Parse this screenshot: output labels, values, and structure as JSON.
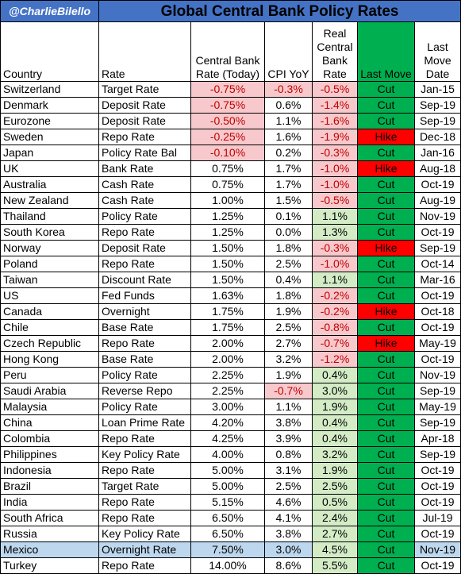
{
  "header": {
    "handle": "@CharlieBilello",
    "title": "Global Central Bank Policy Rates"
  },
  "columns": {
    "country": "Country",
    "rate": "Rate",
    "cb_rate": "Central Bank Rate (Today)",
    "cpi": "CPI YoY",
    "real": "Real Central Bank Rate",
    "last_move": "Last Move",
    "last_move_date": "Last Move Date"
  },
  "colors": {
    "header_blue": "#4472c4",
    "cut_green": "#00b050",
    "hike_red": "#ff0000",
    "negative_pink": "#f8c9cc",
    "positive_green": "#d3ecc6",
    "highlight_blue": "#bdd7ee"
  },
  "rows": [
    {
      "country": "Switzerland",
      "rate": "Target Rate",
      "cb_rate": "-0.75%",
      "cpi": "-0.3%",
      "real": "-0.5%",
      "move": "Cut",
      "date": "Jan-15"
    },
    {
      "country": "Denmark",
      "rate": "Deposit Rate",
      "cb_rate": "-0.75%",
      "cpi": "0.6%",
      "real": "-1.4%",
      "move": "Cut",
      "date": "Sep-19"
    },
    {
      "country": "Eurozone",
      "rate": "Deposit Rate",
      "cb_rate": "-0.50%",
      "cpi": "1.1%",
      "real": "-1.6%",
      "move": "Cut",
      "date": "Sep-19"
    },
    {
      "country": "Sweden",
      "rate": "Repo Rate",
      "cb_rate": "-0.25%",
      "cpi": "1.6%",
      "real": "-1.9%",
      "move": "Hike",
      "date": "Dec-18"
    },
    {
      "country": "Japan",
      "rate": "Policy Rate Bal",
      "cb_rate": "-0.10%",
      "cpi": "0.2%",
      "real": "-0.3%",
      "move": "Cut",
      "date": "Jan-16"
    },
    {
      "country": "UK",
      "rate": "Bank Rate",
      "cb_rate": "0.75%",
      "cpi": "1.7%",
      "real": "-1.0%",
      "move": "Hike",
      "date": "Aug-18"
    },
    {
      "country": "Australia",
      "rate": "Cash Rate",
      "cb_rate": "0.75%",
      "cpi": "1.7%",
      "real": "-1.0%",
      "move": "Cut",
      "date": "Oct-19"
    },
    {
      "country": "New Zealand",
      "rate": "Cash Rate",
      "cb_rate": "1.00%",
      "cpi": "1.5%",
      "real": "-0.5%",
      "move": "Cut",
      "date": "Aug-19"
    },
    {
      "country": "Thailand",
      "rate": "Policy Rate",
      "cb_rate": "1.25%",
      "cpi": "0.1%",
      "real": "1.1%",
      "move": "Cut",
      "date": "Nov-19"
    },
    {
      "country": "South Korea",
      "rate": "Repo Rate",
      "cb_rate": "1.25%",
      "cpi": "0.0%",
      "real": "1.3%",
      "move": "Cut",
      "date": "Oct-19"
    },
    {
      "country": "Norway",
      "rate": "Deposit Rate",
      "cb_rate": "1.50%",
      "cpi": "1.8%",
      "real": "-0.3%",
      "move": "Hike",
      "date": "Sep-19"
    },
    {
      "country": "Poland",
      "rate": "Repo Rate",
      "cb_rate": "1.50%",
      "cpi": "2.5%",
      "real": "-1.0%",
      "move": "Cut",
      "date": "Oct-14"
    },
    {
      "country": "Taiwan",
      "rate": "Discount Rate",
      "cb_rate": "1.50%",
      "cpi": "0.4%",
      "real": "1.1%",
      "move": "Cut",
      "date": "Mar-16"
    },
    {
      "country": "US",
      "rate": "Fed Funds",
      "cb_rate": "1.63%",
      "cpi": "1.8%",
      "real": "-0.2%",
      "move": "Cut",
      "date": "Oct-19"
    },
    {
      "country": "Canada",
      "rate": "Overnight",
      "cb_rate": "1.75%",
      "cpi": "1.9%",
      "real": "-0.2%",
      "move": "Hike",
      "date": "Oct-18"
    },
    {
      "country": "Chile",
      "rate": "Base Rate",
      "cb_rate": "1.75%",
      "cpi": "2.5%",
      "real": "-0.8%",
      "move": "Cut",
      "date": "Oct-19"
    },
    {
      "country": "Czech Republic",
      "rate": "Repo Rate",
      "cb_rate": "2.00%",
      "cpi": "2.7%",
      "real": "-0.7%",
      "move": "Hike",
      "date": "May-19"
    },
    {
      "country": "Hong Kong",
      "rate": "Base Rate",
      "cb_rate": "2.00%",
      "cpi": "3.2%",
      "real": "-1.2%",
      "move": "Cut",
      "date": "Oct-19"
    },
    {
      "country": "Peru",
      "rate": "Policy Rate",
      "cb_rate": "2.25%",
      "cpi": "1.9%",
      "real": "0.4%",
      "move": "Cut",
      "date": "Nov-19"
    },
    {
      "country": "Saudi Arabia",
      "rate": "Reverse Repo",
      "cb_rate": "2.25%",
      "cpi": "-0.7%",
      "real": "3.0%",
      "move": "Cut",
      "date": "Sep-19"
    },
    {
      "country": "Malaysia",
      "rate": "Policy Rate",
      "cb_rate": "3.00%",
      "cpi": "1.1%",
      "real": "1.9%",
      "move": "Cut",
      "date": "May-19"
    },
    {
      "country": "China",
      "rate": "Loan Prime Rate",
      "cb_rate": "4.20%",
      "cpi": "3.8%",
      "real": "0.4%",
      "move": "Cut",
      "date": "Sep-19"
    },
    {
      "country": "Colombia",
      "rate": "Repo Rate",
      "cb_rate": "4.25%",
      "cpi": "3.9%",
      "real": "0.4%",
      "move": "Cut",
      "date": "Apr-18"
    },
    {
      "country": "Philippines",
      "rate": "Key Policy Rate",
      "cb_rate": "4.00%",
      "cpi": "0.8%",
      "real": "3.2%",
      "move": "Cut",
      "date": "Sep-19"
    },
    {
      "country": "Indonesia",
      "rate": "Repo Rate",
      "cb_rate": "5.00%",
      "cpi": "3.1%",
      "real": "1.9%",
      "move": "Cut",
      "date": "Oct-19"
    },
    {
      "country": "Brazil",
      "rate": "Target Rate",
      "cb_rate": "5.00%",
      "cpi": "2.5%",
      "real": "2.5%",
      "move": "Cut",
      "date": "Oct-19"
    },
    {
      "country": "India",
      "rate": "Repo Rate",
      "cb_rate": "5.15%",
      "cpi": "4.6%",
      "real": "0.5%",
      "move": "Cut",
      "date": "Oct-19"
    },
    {
      "country": "South Africa",
      "rate": "Repo Rate",
      "cb_rate": "6.50%",
      "cpi": "4.1%",
      "real": "2.4%",
      "move": "Cut",
      "date": "Jul-19"
    },
    {
      "country": "Russia",
      "rate": "Key Policy Rate",
      "cb_rate": "6.50%",
      "cpi": "3.8%",
      "real": "2.7%",
      "move": "Cut",
      "date": "Oct-19"
    },
    {
      "country": "Mexico",
      "rate": "Overnight Rate",
      "cb_rate": "7.50%",
      "cpi": "3.0%",
      "real": "4.5%",
      "move": "Cut",
      "date": "Nov-19",
      "highlight": true
    },
    {
      "country": "Turkey",
      "rate": "Repo Rate",
      "cb_rate": "14.00%",
      "cpi": "8.6%",
      "real": "5.5%",
      "move": "Cut",
      "date": "Oct-19"
    }
  ]
}
